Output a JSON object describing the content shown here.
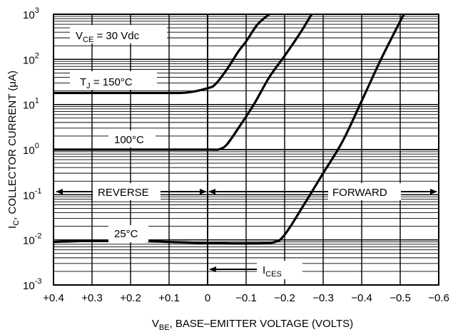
{
  "chart_data": {
    "type": "line",
    "title": "",
    "x_axis": {
      "label_parts": {
        "pre": "V",
        "sub": "BE",
        "post": ", BASE–EMITTER VOLTAGE (VOLTS)"
      },
      "range": [
        0.4,
        -0.6
      ],
      "ticks": [
        0.4,
        0.3,
        0.2,
        0.1,
        0,
        -0.1,
        -0.2,
        -0.3,
        -0.4,
        -0.5,
        -0.6
      ],
      "tick_labels": [
        "+0.4",
        "+0.3",
        "+0.2",
        "+0.1",
        "0",
        "−0.1",
        "−0.2",
        "−0.3",
        "−0.4",
        "−0.5",
        "−0.6"
      ]
    },
    "y_axis": {
      "label_parts": {
        "pre": "I",
        "sub": "C",
        "post": ", COLLECTOR CURRENT (μA)"
      },
      "scale": "log",
      "range": [
        0.001,
        1000
      ],
      "decades": [
        -3,
        -2,
        -1,
        0,
        1,
        2,
        3
      ],
      "tick_labels": [
        {
          "base": "10",
          "exp": "-3"
        },
        {
          "base": "10",
          "exp": "-2"
        },
        {
          "base": "10",
          "exp": "-1"
        },
        {
          "base": "10",
          "exp": "0"
        },
        {
          "base": "10",
          "exp": "1"
        },
        {
          "base": "10",
          "exp": "2"
        },
        {
          "base": "10",
          "exp": "3"
        }
      ]
    },
    "grid": true,
    "series": [
      {
        "name": "T_J = 150°C",
        "points": [
          [
            0.4,
            18
          ],
          [
            0.25,
            18
          ],
          [
            0.1,
            18
          ],
          [
            0.05,
            18.5
          ],
          [
            0.0,
            23
          ],
          [
            -0.02,
            28
          ],
          [
            -0.05,
            60
          ],
          [
            -0.08,
            150
          ],
          [
            -0.1,
            250
          ],
          [
            -0.13,
            600
          ],
          [
            -0.16,
            1000
          ]
        ]
      },
      {
        "name": "100°C",
        "points": [
          [
            0.4,
            1
          ],
          [
            0.2,
            1
          ],
          [
            0.0,
            1
          ],
          [
            -0.03,
            1.02
          ],
          [
            -0.05,
            1.3
          ],
          [
            -0.08,
            3
          ],
          [
            -0.12,
            10
          ],
          [
            -0.16,
            40
          ],
          [
            -0.2,
            120
          ],
          [
            -0.24,
            380
          ],
          [
            -0.27,
            1000
          ]
        ]
      },
      {
        "name": "25°C",
        "points": [
          [
            0.4,
            0.009
          ],
          [
            0.3,
            0.0095
          ],
          [
            0.2,
            0.0095
          ],
          [
            0.1,
            0.009
          ],
          [
            0.0,
            0.0085
          ],
          [
            -0.1,
            0.0083
          ],
          [
            -0.17,
            0.0088
          ],
          [
            -0.2,
            0.013
          ],
          [
            -0.25,
            0.06
          ],
          [
            -0.3,
            0.3
          ],
          [
            -0.35,
            1.5
          ],
          [
            -0.4,
            12
          ],
          [
            -0.45,
            100
          ],
          [
            -0.5,
            700
          ],
          [
            -0.51,
            1000
          ]
        ]
      }
    ],
    "annotations": {
      "vce": {
        "pre": "V",
        "sub": "CE",
        "post": " = 30 Vdc"
      },
      "tj": {
        "pre": "T",
        "sub": "J",
        "post": " = 150°C"
      },
      "t100": "100°C",
      "t25": "25°C",
      "reverse": "REVERSE",
      "forward": "FORWARD",
      "ices": {
        "pre": "I",
        "sub": "CES"
      }
    }
  }
}
